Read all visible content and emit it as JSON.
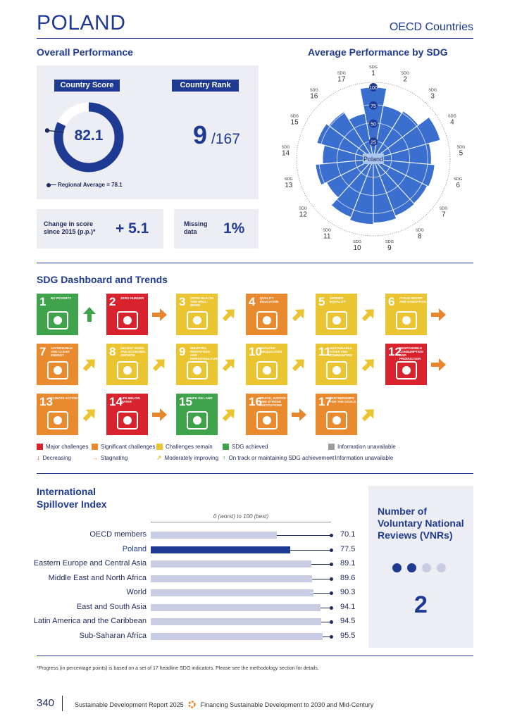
{
  "header": {
    "country": "POLAND",
    "group": "OECD Countries"
  },
  "overall": {
    "title": "Overall Performance",
    "score_label": "Country Score",
    "rank_label": "Country Rank",
    "score": "82.1",
    "score_value": 82.1,
    "rank": "9",
    "rank_total": "/167",
    "regional_label": "Regional Average = 78.1",
    "regional_value": 78.1,
    "change_label_1": "Change in score",
    "change_label_2": "since 2015 (p.p.)*",
    "change_value": "+ 5.1",
    "missing_label_1": "Missing",
    "missing_label_2": "data",
    "missing_value": "1%"
  },
  "sdg_radar": {
    "title": "Average Performance by SDG",
    "center_label": "Poland",
    "sdg_prefix": "SDG",
    "ring_labels": [
      "25",
      "50",
      "75",
      "100"
    ],
    "goals": [
      "1",
      "2",
      "3",
      "4",
      "5",
      "6",
      "7",
      "8",
      "9",
      "10",
      "11",
      "12",
      "13",
      "14",
      "15",
      "16",
      "17"
    ]
  },
  "chart_data": [
    {
      "type": "radar",
      "title": "Average Performance by SDG",
      "categories": [
        "SDG 1",
        "SDG 2",
        "SDG 3",
        "SDG 4",
        "SDG 5",
        "SDG 6",
        "SDG 7",
        "SDG 8",
        "SDG 9",
        "SDG 10",
        "SDG 11",
        "SDG 12",
        "SDG 13",
        "SDG 14",
        "SDG 15",
        "SDG 16",
        "SDG 17"
      ],
      "values": [
        99,
        75,
        78,
        96,
        80,
        85,
        83,
        84,
        88,
        90,
        86,
        72,
        80,
        70,
        81,
        77,
        64
      ],
      "rlim": [
        0,
        100
      ]
    },
    {
      "type": "bar",
      "title": "International Spillover Index",
      "xlabel": "0 (worst) to 100 (best)",
      "categories": [
        "OECD members",
        "Poland",
        "Eastern Europe and Central Asia",
        "Middle East and North Africa",
        "World",
        "East and South Asia",
        "Latin America and the Caribbean",
        "Sub-Saharan Africa"
      ],
      "values": [
        70.1,
        77.5,
        89.1,
        89.6,
        90.3,
        94.1,
        94.5,
        95.5
      ],
      "xlim": [
        0,
        100
      ]
    }
  ],
  "dashboard": {
    "title": "SDG Dashboard and Trends",
    "tiles": [
      {
        "num": "1",
        "name": "No poverty",
        "color": "#3ea34a",
        "trend": "up",
        "trend_color": "#3ea34a",
        "icon": "family-icon"
      },
      {
        "num": "2",
        "name": "Zero hunger",
        "color": "#d8232f",
        "trend": "right",
        "trend_color": "#e8862d",
        "icon": "bowl-icon"
      },
      {
        "num": "3",
        "name": "Good health and well-being",
        "color": "#eac431",
        "trend": "diag",
        "trend_color": "#eac431",
        "icon": "heartbeat-icon"
      },
      {
        "num": "4",
        "name": "Quality education",
        "color": "#ea8a2e",
        "trend": "diag",
        "trend_color": "#eac431",
        "icon": "book-icon"
      },
      {
        "num": "5",
        "name": "Gender equality",
        "color": "#eac431",
        "trend": "diag",
        "trend_color": "#eac431",
        "icon": "gender-icon"
      },
      {
        "num": "6",
        "name": "Clean water and sanitation",
        "color": "#eac431",
        "trend": "right",
        "trend_color": "#e8862d",
        "icon": "water-icon"
      },
      {
        "num": "7",
        "name": "Affordable and clean energy",
        "color": "#ea8a2e",
        "trend": "diag",
        "trend_color": "#eac431",
        "icon": "sun-icon"
      },
      {
        "num": "8",
        "name": "Decent work and economic growth",
        "color": "#eac431",
        "trend": "diag",
        "trend_color": "#eac431",
        "icon": "growth-icon"
      },
      {
        "num": "9",
        "name": "Industry, innovation and infrastructure",
        "color": "#eac431",
        "trend": "diag",
        "trend_color": "#eac431",
        "icon": "cubes-icon"
      },
      {
        "num": "10",
        "name": "Reduced inequalities",
        "color": "#eac431",
        "trend": "diag",
        "trend_color": "#eac431",
        "icon": "equality-icon"
      },
      {
        "num": "11",
        "name": "Sustainable cities and communities",
        "color": "#eac431",
        "trend": "diag",
        "trend_color": "#eac431",
        "icon": "city-icon"
      },
      {
        "num": "12",
        "name": "Responsible consumption and production",
        "color": "#d8232f",
        "trend": "right",
        "trend_color": "#e8862d",
        "icon": "infinity-icon"
      },
      {
        "num": "13",
        "name": "Climate action",
        "color": "#ea8a2e",
        "trend": "diag",
        "trend_color": "#eac431",
        "icon": "eye-globe-icon"
      },
      {
        "num": "14",
        "name": "Life below water",
        "color": "#d8232f",
        "trend": "right",
        "trend_color": "#e8862d",
        "icon": "fish-icon"
      },
      {
        "num": "15",
        "name": "Life on land",
        "color": "#3ea34a",
        "trend": "diag",
        "trend_color": "#eac431",
        "icon": "tree-icon"
      },
      {
        "num": "16",
        "name": "Peace, justice and strong institutions",
        "color": "#ea8a2e",
        "trend": "right",
        "trend_color": "#e8862d",
        "icon": "dove-icon"
      },
      {
        "num": "17",
        "name": "Partnerships for the goals",
        "color": "#ea8a2e",
        "trend": "diag",
        "trend_color": "#eac431",
        "icon": "rings-icon"
      }
    ],
    "legend_status": [
      {
        "label": "Major challenges",
        "color": "#d8232f"
      },
      {
        "label": "Significant challenges",
        "color": "#ea8a2e"
      },
      {
        "label": "Challenges remain",
        "color": "#eac431"
      },
      {
        "label": "SDG achieved",
        "color": "#3ea34a"
      },
      {
        "label": "Information unavailable",
        "color": "#9c9c9c"
      }
    ],
    "legend_trend": [
      {
        "label": "Decreasing",
        "symbol": "↓",
        "color": "#d8232f"
      },
      {
        "label": "Stagnating",
        "symbol": "→",
        "color": "#e8862d"
      },
      {
        "label": "Moderately improving",
        "symbol": "↗",
        "color": "#eac431"
      },
      {
        "label": "On track or maintaining SDG achievement",
        "symbol": "↑",
        "color": "#3ea34a"
      },
      {
        "label": "Information unavailable",
        "symbol": "●",
        "color": "#9c9c9c"
      }
    ]
  },
  "spillover": {
    "title_1": "International",
    "title_2": "Spillover Index",
    "scale_label": "0 (worst) to 100 (best)"
  },
  "vnr": {
    "title_1": "Number of",
    "title_2": "Voluntary National",
    "title_3": "Reviews (VNRs)",
    "count": "2",
    "count_value": 2,
    "dots_total": 4
  },
  "footer": {
    "note": "*Progress (in percentage points) is based on a set of 17 headline SDG indicators. Please see the methodology section for details.",
    "page": "340",
    "report": "Sustainable Development Report 2025",
    "subtitle": "Financing Sustainable Development to 2030 and Mid-Century"
  },
  "colors": {
    "navy": "#1f3a93",
    "radar_fill": "#3a6fd0",
    "panel": "#eceef3",
    "bar_light": "#c9cde3"
  }
}
